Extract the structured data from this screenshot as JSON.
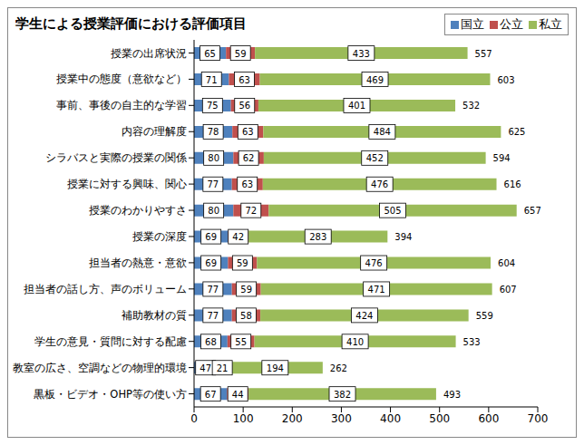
{
  "chart_data": {
    "type": "bar",
    "title": "学生による授業評価における評価項目",
    "orientation": "horizontal",
    "stacked": true,
    "data_labels": true,
    "grid": false,
    "legend": "upper right",
    "categories": [
      "授業の出席状況",
      "授業中の態度（意欲など）",
      "事前、事後の自主的な学習",
      "内容の理解度",
      "シラバスと実際の授業の関係",
      "授業に対する興味、関心",
      "授業のわかりやすさ",
      "授業の深度",
      "担当者の熱意・意欲",
      "担当者の話し方、声のボリューム",
      "補助教材の質",
      "学生の意見・質問に対する配慮",
      "教室の広さ、空調などの物理的環境",
      "黒板・ビデオ・OHP等の使い方"
    ],
    "series": [
      {
        "name": "国立",
        "color": "#4f81bd",
        "values": [
          65,
          71,
          75,
          78,
          80,
          77,
          80,
          69,
          69,
          77,
          77,
          68,
          47,
          67
        ]
      },
      {
        "name": "公立",
        "color": "#c0504d",
        "values": [
          59,
          63,
          56,
          63,
          62,
          63,
          72,
          42,
          59,
          59,
          58,
          55,
          21,
          44
        ]
      },
      {
        "name": "私立",
        "color": "#9bbb59",
        "values": [
          433,
          469,
          401,
          484,
          452,
          476,
          505,
          283,
          476,
          471,
          424,
          410,
          194,
          382
        ]
      }
    ],
    "totals": [
      557,
      603,
      532,
      625,
      594,
      616,
      657,
      394,
      604,
      607,
      559,
      533,
      262,
      493
    ],
    "xlim": [
      0,
      700
    ],
    "xticks": [
      0,
      100,
      200,
      300,
      400,
      500,
      600,
      700
    ]
  }
}
